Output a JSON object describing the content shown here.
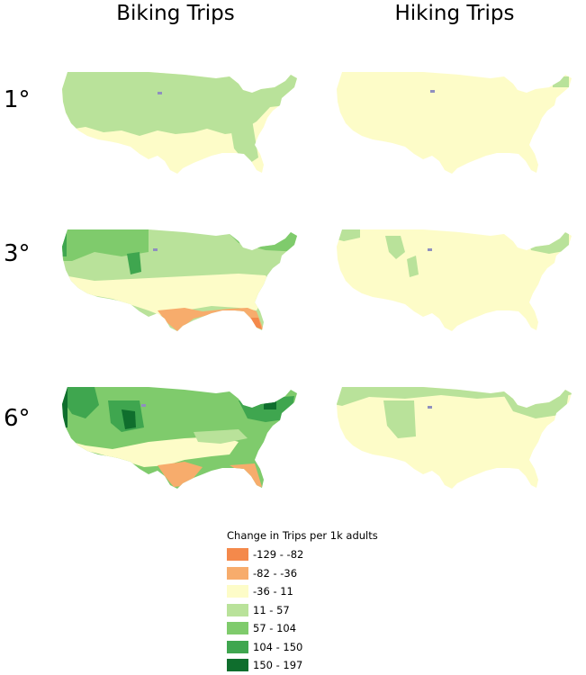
{
  "columns": [
    "Biking Trips",
    "Hiking Trips"
  ],
  "rows": [
    "1°",
    "3°",
    "6°"
  ],
  "legend": {
    "title": "Change in Trips per 1k adults",
    "items": [
      {
        "label": "-129 - -82",
        "color": "#f4894b"
      },
      {
        "label": "-82 - -36",
        "color": "#f7ac6c"
      },
      {
        "label": "-36 - 11",
        "color": "#fdfcc8"
      },
      {
        "label": "11 - 57",
        "color": "#b9e29a"
      },
      {
        "label": "57 - 104",
        "color": "#7fcb6c"
      },
      {
        "label": "104 - 150",
        "color": "#3fa64f"
      },
      {
        "label": "150 - 197",
        "color": "#0f6e2d"
      }
    ]
  },
  "map_panels": [
    {
      "activity": "Biking Trips",
      "warming": "1°"
    },
    {
      "activity": "Hiking Trips",
      "warming": "1°"
    },
    {
      "activity": "Biking Trips",
      "warming": "3°"
    },
    {
      "activity": "Hiking Trips",
      "warming": "3°"
    },
    {
      "activity": "Biking Trips",
      "warming": "6°"
    },
    {
      "activity": "Hiking Trips",
      "warming": "6°"
    }
  ]
}
